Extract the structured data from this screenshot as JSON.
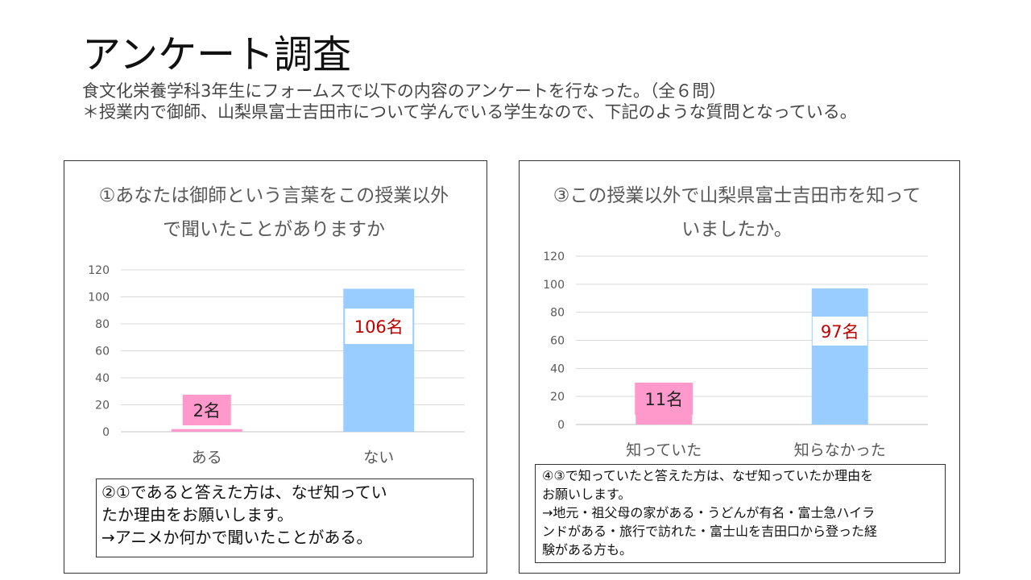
{
  "slide": {
    "title": "アンケート調査",
    "subtitle_line1": "食文化栄養学科3年生にフォームスで以下の内容のアンケートを行なった。（全６問）",
    "subtitle_line2": "＊授業内で御師、山梨県富士吉田市について学んでいる学生なので、下記のような質問となっている。"
  },
  "chart_left": {
    "title": "①あなたは御師という言葉をこの授業以外で聞いたことがありますか",
    "data_labels": [
      "2名",
      "106名"
    ]
  },
  "chart_right": {
    "title": "③この授業以外で山梨県富士吉田市を知っていましたか。",
    "data_labels": [
      "11名",
      "97名"
    ]
  },
  "note_left": {
    "line1": "②①であると答えた方は、なぜ知ってい",
    "line2": "たか理由をお願いします。",
    "line3": "→アニメか何かで聞いたことがある。"
  },
  "note_right": {
    "line1": "④③で知っていたと答えた方は、なぜ知っていたか理由を",
    "line2": "お願いします。",
    "line3": "→地元・祖父母の家がある・うどんが有名・富士急ハイラ",
    "line4": "ンドがある・旅行で訪れた・富士山を吉田口から登った経",
    "line5": "験がある方も。"
  },
  "colors": {
    "bar_blue": "#99ccff",
    "bar_pink": "#ff99cc",
    "label_red": "#c00000",
    "gridline": "#d9d9d9"
  },
  "chart_data": [
    {
      "type": "bar",
      "title": "①あなたは御師という言葉をこの授業以外で聞いたことがありますか",
      "categories": [
        "ある",
        "ない"
      ],
      "values": [
        2,
        106
      ],
      "ylim": [
        0,
        120
      ],
      "yticks": [
        0,
        20,
        40,
        60,
        80,
        100,
        120
      ],
      "grid": true
    },
    {
      "type": "bar",
      "title": "③この授業以外で山梨県富士吉田市を知っていましたか。",
      "categories": [
        "知っていた",
        "知らなかった"
      ],
      "values": [
        11,
        97
      ],
      "ylim": [
        0,
        120
      ],
      "yticks": [
        0,
        20,
        40,
        60,
        80,
        100,
        120
      ],
      "grid": true
    }
  ]
}
